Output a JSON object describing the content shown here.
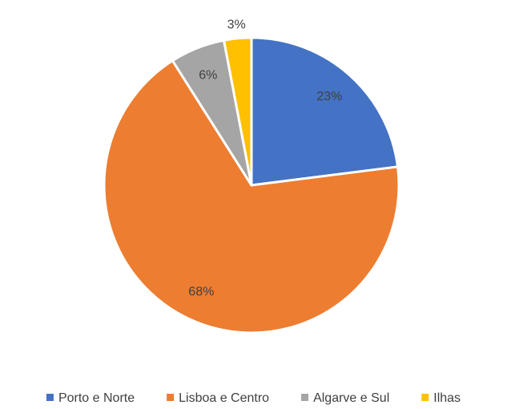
{
  "chart_data": {
    "type": "pie",
    "categories": [
      "Porto e Norte",
      "Lisboa e Centro",
      "Algarve e Sul",
      "Ilhas"
    ],
    "values": [
      23,
      68,
      6,
      3
    ],
    "value_labels": [
      "23%",
      "68%",
      "6%",
      "3%"
    ],
    "colors": [
      "#4472c4",
      "#ed7d31",
      "#a5a5a5",
      "#ffc000"
    ],
    "legend": "bottom"
  }
}
